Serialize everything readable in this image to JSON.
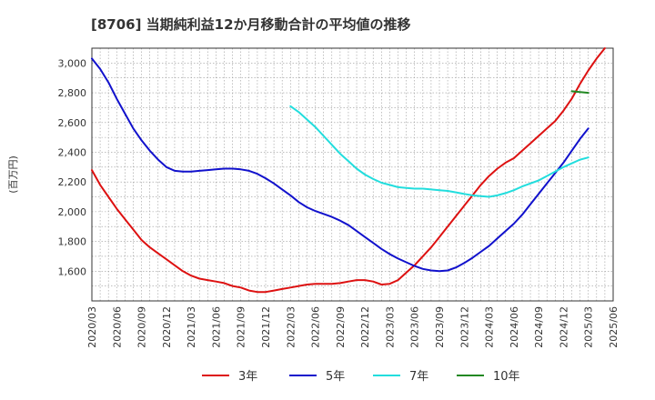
{
  "chart_data": {
    "type": "line",
    "title": "[8706]  当期純利益12か月移動合計の平均値の推移",
    "ylabel": "(百万円)",
    "xlabel": "",
    "ylim": [
      1400,
      3100
    ],
    "y_ticks": [
      "1,600",
      "1,800",
      "2,000",
      "2,200",
      "2,400",
      "2,600",
      "2,800",
      "3,000"
    ],
    "y_tick_values": [
      1600,
      1800,
      2000,
      2200,
      2400,
      2600,
      2800,
      3000
    ],
    "x_ticks": [
      "2020/03",
      "2020/06",
      "2020/09",
      "2020/12",
      "2021/03",
      "2021/06",
      "2021/09",
      "2021/12",
      "2022/03",
      "2022/06",
      "2022/09",
      "2022/12",
      "2023/03",
      "2023/06",
      "2023/09",
      "2023/12",
      "2024/03",
      "2024/06",
      "2024/09",
      "2024/12",
      "2025/03",
      "2025/06"
    ],
    "grid": true,
    "legend_position": "bottom",
    "series": [
      {
        "name": "3年",
        "color": "#dd1111",
        "points": [
          [
            "2020/03",
            2280
          ],
          [
            "2020/04",
            2180
          ],
          [
            "2020/05",
            2100
          ],
          [
            "2020/06",
            2020
          ],
          [
            "2020/07",
            1950
          ],
          [
            "2020/08",
            1880
          ],
          [
            "2020/09",
            1810
          ],
          [
            "2020/10",
            1760
          ],
          [
            "2020/11",
            1720
          ],
          [
            "2020/12",
            1680
          ],
          [
            "2021/01",
            1640
          ],
          [
            "2021/02",
            1600
          ],
          [
            "2021/03",
            1570
          ],
          [
            "2021/04",
            1550
          ],
          [
            "2021/05",
            1540
          ],
          [
            "2021/06",
            1530
          ],
          [
            "2021/07",
            1520
          ],
          [
            "2021/08",
            1500
          ],
          [
            "2021/09",
            1490
          ],
          [
            "2021/10",
            1470
          ],
          [
            "2021/11",
            1460
          ],
          [
            "2021/12",
            1460
          ],
          [
            "2022/01",
            1470
          ],
          [
            "2022/02",
            1480
          ],
          [
            "2022/03",
            1490
          ],
          [
            "2022/04",
            1500
          ],
          [
            "2022/05",
            1510
          ],
          [
            "2022/06",
            1515
          ],
          [
            "2022/07",
            1515
          ],
          [
            "2022/08",
            1515
          ],
          [
            "2022/09",
            1520
          ],
          [
            "2022/10",
            1530
          ],
          [
            "2022/11",
            1540
          ],
          [
            "2022/12",
            1540
          ],
          [
            "2023/01",
            1530
          ],
          [
            "2023/02",
            1510
          ],
          [
            "2023/03",
            1515
          ],
          [
            "2023/04",
            1540
          ],
          [
            "2023/05",
            1590
          ],
          [
            "2023/06",
            1640
          ],
          [
            "2023/07",
            1700
          ],
          [
            "2023/08",
            1760
          ],
          [
            "2023/09",
            1830
          ],
          [
            "2023/10",
            1900
          ],
          [
            "2023/11",
            1970
          ],
          [
            "2023/12",
            2040
          ],
          [
            "2024/01",
            2110
          ],
          [
            "2024/02",
            2180
          ],
          [
            "2024/03",
            2240
          ],
          [
            "2024/04",
            2290
          ],
          [
            "2024/05",
            2330
          ],
          [
            "2024/06",
            2360
          ],
          [
            "2024/07",
            2410
          ],
          [
            "2024/08",
            2460
          ],
          [
            "2024/09",
            2510
          ],
          [
            "2024/10",
            2560
          ],
          [
            "2024/11",
            2610
          ],
          [
            "2024/12",
            2680
          ],
          [
            "2025/01",
            2760
          ],
          [
            "2025/02",
            2860
          ],
          [
            "2025/03",
            2950
          ],
          [
            "2025/04",
            3030
          ],
          [
            "2025/05",
            3100
          ]
        ]
      },
      {
        "name": "5年",
        "color": "#1111cc",
        "points": [
          [
            "2020/03",
            3030
          ],
          [
            "2020/04",
            2960
          ],
          [
            "2020/05",
            2870
          ],
          [
            "2020/06",
            2760
          ],
          [
            "2020/07",
            2660
          ],
          [
            "2020/08",
            2560
          ],
          [
            "2020/09",
            2480
          ],
          [
            "2020/10",
            2410
          ],
          [
            "2020/11",
            2350
          ],
          [
            "2020/12",
            2300
          ],
          [
            "2021/01",
            2275
          ],
          [
            "2021/02",
            2270
          ],
          [
            "2021/03",
            2270
          ],
          [
            "2021/04",
            2275
          ],
          [
            "2021/05",
            2280
          ],
          [
            "2021/06",
            2285
          ],
          [
            "2021/07",
            2290
          ],
          [
            "2021/08",
            2290
          ],
          [
            "2021/09",
            2285
          ],
          [
            "2021/10",
            2275
          ],
          [
            "2021/11",
            2255
          ],
          [
            "2021/12",
            2225
          ],
          [
            "2022/01",
            2190
          ],
          [
            "2022/02",
            2150
          ],
          [
            "2022/03",
            2110
          ],
          [
            "2022/04",
            2065
          ],
          [
            "2022/05",
            2030
          ],
          [
            "2022/06",
            2005
          ],
          [
            "2022/07",
            1985
          ],
          [
            "2022/08",
            1965
          ],
          [
            "2022/09",
            1940
          ],
          [
            "2022/10",
            1910
          ],
          [
            "2022/11",
            1870
          ],
          [
            "2022/12",
            1830
          ],
          [
            "2023/01",
            1790
          ],
          [
            "2023/02",
            1750
          ],
          [
            "2023/03",
            1715
          ],
          [
            "2023/04",
            1685
          ],
          [
            "2023/05",
            1660
          ],
          [
            "2023/06",
            1635
          ],
          [
            "2023/07",
            1615
          ],
          [
            "2023/08",
            1605
          ],
          [
            "2023/09",
            1600
          ],
          [
            "2023/10",
            1605
          ],
          [
            "2023/11",
            1625
          ],
          [
            "2023/12",
            1655
          ],
          [
            "2024/01",
            1690
          ],
          [
            "2024/02",
            1730
          ],
          [
            "2024/03",
            1770
          ],
          [
            "2024/04",
            1820
          ],
          [
            "2024/05",
            1870
          ],
          [
            "2024/06",
            1920
          ],
          [
            "2024/07",
            1980
          ],
          [
            "2024/08",
            2050
          ],
          [
            "2024/09",
            2120
          ],
          [
            "2024/10",
            2190
          ],
          [
            "2024/11",
            2260
          ],
          [
            "2024/12",
            2330
          ],
          [
            "2025/01",
            2410
          ],
          [
            "2025/02",
            2490
          ],
          [
            "2025/03",
            2560
          ]
        ]
      },
      {
        "name": "7年",
        "color": "#22dddd",
        "points": [
          [
            "2022/03",
            2710
          ],
          [
            "2022/04",
            2670
          ],
          [
            "2022/05",
            2620
          ],
          [
            "2022/06",
            2570
          ],
          [
            "2022/07",
            2510
          ],
          [
            "2022/08",
            2450
          ],
          [
            "2022/09",
            2390
          ],
          [
            "2022/10",
            2340
          ],
          [
            "2022/11",
            2290
          ],
          [
            "2022/12",
            2250
          ],
          [
            "2023/01",
            2220
          ],
          [
            "2023/02",
            2195
          ],
          [
            "2023/03",
            2180
          ],
          [
            "2023/04",
            2165
          ],
          [
            "2023/05",
            2160
          ],
          [
            "2023/06",
            2155
          ],
          [
            "2023/07",
            2155
          ],
          [
            "2023/08",
            2150
          ],
          [
            "2023/09",
            2145
          ],
          [
            "2023/10",
            2140
          ],
          [
            "2023/11",
            2130
          ],
          [
            "2023/12",
            2120
          ],
          [
            "2024/01",
            2110
          ],
          [
            "2024/02",
            2105
          ],
          [
            "2024/03",
            2100
          ],
          [
            "2024/04",
            2110
          ],
          [
            "2024/05",
            2125
          ],
          [
            "2024/06",
            2145
          ],
          [
            "2024/07",
            2170
          ],
          [
            "2024/08",
            2190
          ],
          [
            "2024/09",
            2210
          ],
          [
            "2024/10",
            2240
          ],
          [
            "2024/11",
            2270
          ],
          [
            "2024/12",
            2300
          ],
          [
            "2025/01",
            2325
          ],
          [
            "2025/02",
            2350
          ],
          [
            "2025/03",
            2365
          ]
        ]
      },
      {
        "name": "10年",
        "color": "#228822",
        "points": [
          [
            "2025/01",
            2810
          ],
          [
            "2025/02",
            2805
          ],
          [
            "2025/03",
            2800
          ]
        ]
      }
    ]
  }
}
